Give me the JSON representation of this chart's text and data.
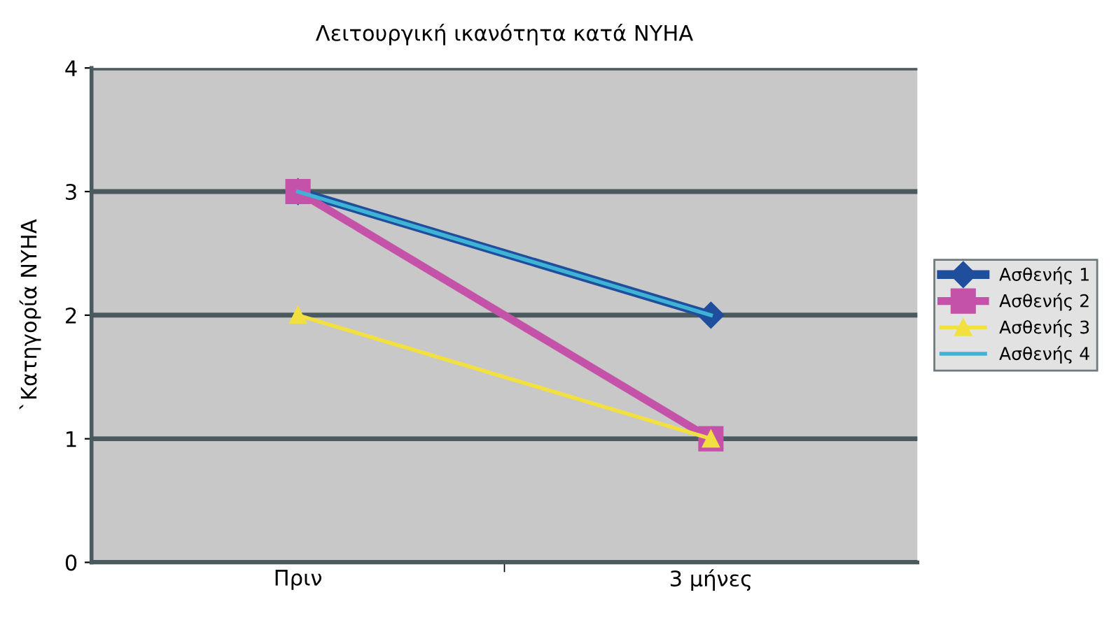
{
  "chart_data": {
    "type": "line",
    "title": "Λειτουργική ικανότητα κατά NYHA",
    "ylabel": "`Κατηγορία NYHA",
    "categories": [
      "Πριν",
      "3 μήνες"
    ],
    "series": [
      {
        "name": "Ασθενής 1",
        "color": "#1f4e9c",
        "values": [
          3,
          2
        ],
        "marker": "diamond"
      },
      {
        "name": "Ασθενής 2",
        "color": "#c452a8",
        "values": [
          3,
          1
        ],
        "marker": "square"
      },
      {
        "name": "Ασθενής 3",
        "color": "#f2e040",
        "values": [
          2,
          1
        ],
        "marker": "triangle"
      },
      {
        "name": "Ασθενής 4",
        "color": "#3fb3d6",
        "values": [
          3,
          2
        ],
        "marker": "none"
      }
    ],
    "ylim": [
      0,
      4
    ],
    "yticks": [
      0,
      1,
      2,
      3,
      4
    ],
    "grid": "y",
    "legend": "right",
    "line_style": "solid"
  }
}
